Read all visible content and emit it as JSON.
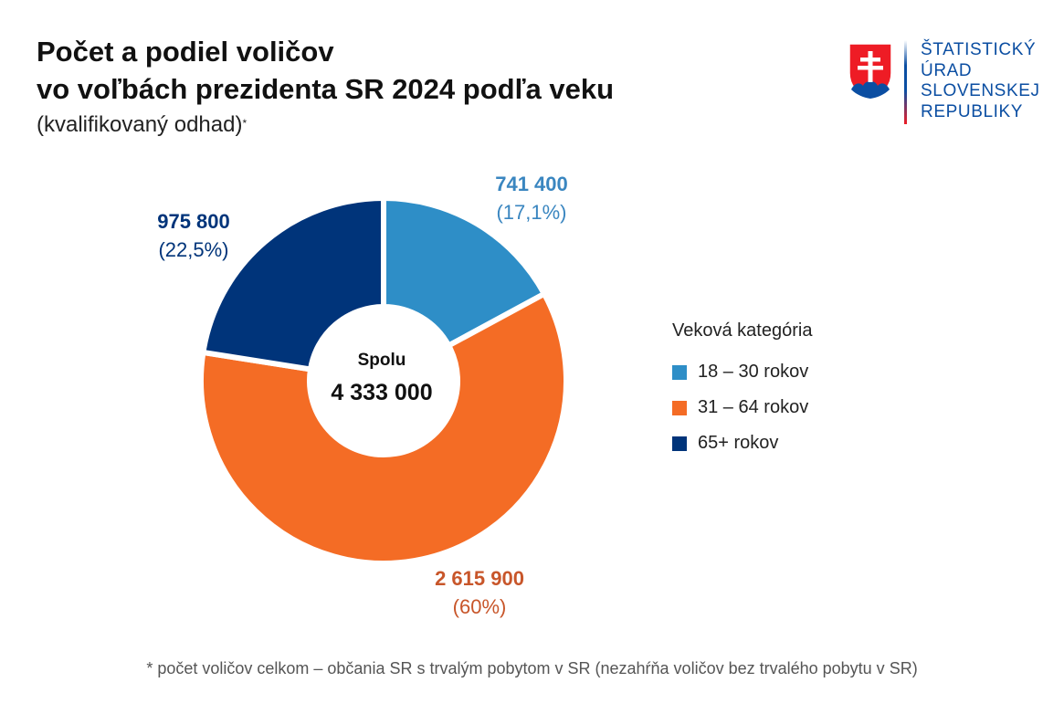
{
  "header": {
    "title_line1": "Počet a podiel voličov",
    "title_line2": "vo voľbách prezidenta SR 2024 podľa veku",
    "subtitle": "(kvalifikovaný odhad)",
    "subtitle_mark": "*"
  },
  "logo": {
    "line1": "ŠTATISTICKÝ",
    "line2": "ÚRAD",
    "line3": "SLOVENSKEJ",
    "line4": "REPUBLIKY",
    "icon": "slovak-coat-of-arms-icon",
    "color": "#0b4ea2"
  },
  "chart_data": {
    "type": "pie",
    "donut": true,
    "title": "Počet a podiel voličov vo voľbách prezidenta SR 2024 podľa veku",
    "legend_title": "Veková kategória",
    "legend_placement": "right",
    "center_title": "Spolu",
    "center_value": "4 333 000",
    "slices": [
      {
        "category": "18 – 30 rokov",
        "value": 741400,
        "value_label": "741 400",
        "percent_label": "(17,1%)",
        "share": 17.1,
        "color": "#2e8ec7",
        "label_color": "#3a86c0"
      },
      {
        "category": "31 – 64 rokov",
        "value": 2615900,
        "value_label": "2 615 900",
        "percent_label": "(60%)",
        "share": 60.4,
        "color": "#f46c25",
        "label_color": "#c8562a"
      },
      {
        "category": "65+ rokov",
        "value": 975800,
        "value_label": "975 800",
        "percent_label": "(22,5%)",
        "share": 22.5,
        "color": "#00347a",
        "label_color": "#00347a"
      }
    ]
  },
  "footnote": "* počet voličov celkom – občania SR s trvalým pobytom v SR (nezahŕňa  voličov bez trvalého pobytu v SR)"
}
